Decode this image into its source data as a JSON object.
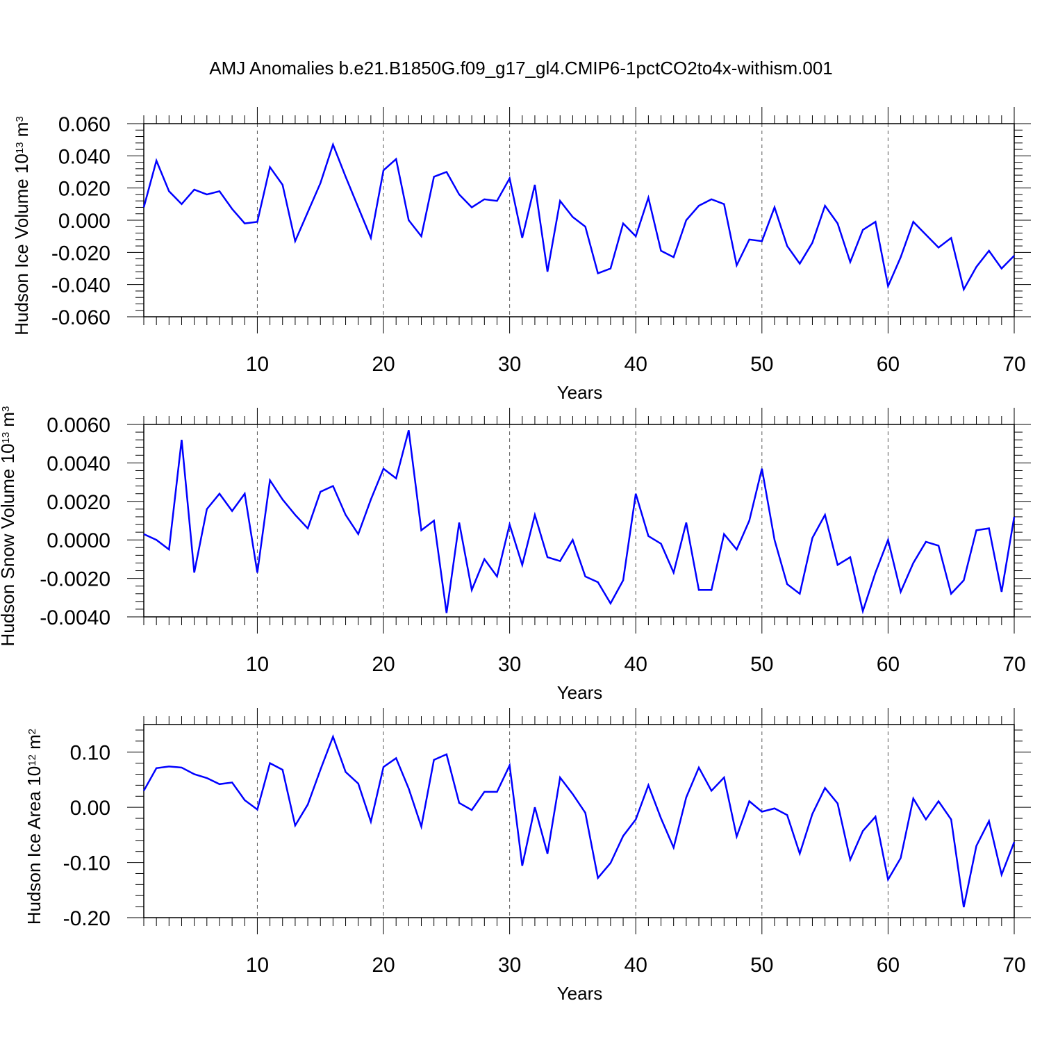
{
  "title": "AMJ Anomalies b.e21.B1850G.f09_g17_gl4.CMIP6-1pctCO2to4x-withism.001",
  "colors": {
    "line": "#0000ff",
    "axis": "#000000",
    "grid": "#555555"
  },
  "chart_data": [
    {
      "type": "line",
      "title": "",
      "xlabel": "Years",
      "ylabel": {
        "main": "Hudson Ice Volume 10",
        "exp": "13",
        "unit": " m",
        "unit_exp": "3"
      },
      "xlim": [
        1,
        70
      ],
      "ylim": [
        -0.06,
        0.06
      ],
      "x_major_ticks": [
        10,
        20,
        30,
        40,
        50,
        60,
        70
      ],
      "y_major_ticks": [
        -0.06,
        -0.04,
        -0.02,
        0,
        0.02,
        0.04,
        0.06
      ],
      "y_tick_labels": [
        "-0.060",
        "-0.040",
        "-0.020",
        "0.000",
        "0.020",
        "0.040",
        "0.060"
      ],
      "grid": "vertical dashed at major x ticks",
      "series": [
        {
          "name": "Hudson Ice Volume",
          "values": [
            0.008,
            0.037,
            0.018,
            0.01,
            0.019,
            0.016,
            0.018,
            0.007,
            -0.002,
            -0.001,
            0.033,
            0.022,
            -0.013,
            0.005,
            0.023,
            0.047,
            0.027,
            0.008,
            -0.011,
            0.031,
            0.038,
            0.0,
            -0.01,
            0.027,
            0.03,
            0.016,
            0.008,
            0.013,
            0.012,
            0.026,
            -0.011,
            0.022,
            -0.032,
            0.012,
            0.002,
            -0.004,
            -0.033,
            -0.03,
            -0.002,
            -0.01,
            0.014,
            -0.019,
            -0.023,
            0.0,
            0.009,
            0.013,
            0.01,
            -0.028,
            -0.012,
            -0.013,
            0.008,
            -0.016,
            -0.027,
            -0.014,
            0.009,
            -0.002,
            -0.026,
            -0.006,
            -0.001,
            -0.041,
            -0.023,
            -0.001,
            -0.009,
            -0.017,
            -0.011,
            -0.043,
            -0.029,
            -0.019,
            -0.03,
            -0.022
          ]
        }
      ]
    },
    {
      "type": "line",
      "title": "",
      "xlabel": "Years",
      "ylabel": {
        "main": "Hudson Snow Volume 10",
        "exp": "13",
        "unit": " m",
        "unit_exp": "3"
      },
      "xlim": [
        1,
        70
      ],
      "ylim": [
        -0.004,
        0.006
      ],
      "x_major_ticks": [
        10,
        20,
        30,
        40,
        50,
        60,
        70
      ],
      "y_major_ticks": [
        -0.004,
        -0.002,
        0,
        0.002,
        0.004,
        0.006
      ],
      "y_tick_labels": [
        "-0.0040",
        "-0.0020",
        "0.0000",
        "0.0020",
        "0.0040",
        "0.0060"
      ],
      "grid": "vertical dashed at major x ticks",
      "series": [
        {
          "name": "Hudson Snow Volume",
          "values": [
            0.0003,
            0.0,
            -0.0005,
            0.0052,
            -0.0017,
            0.0016,
            0.0024,
            0.0015,
            0.0024,
            -0.0017,
            0.0031,
            0.0021,
            0.0013,
            0.0006,
            0.0025,
            0.0028,
            0.0013,
            0.0003,
            0.0021,
            0.0037,
            0.0032,
            0.0057,
            0.0005,
            0.001,
            -0.0038,
            0.0009,
            -0.0026,
            -0.001,
            -0.0019,
            0.0008,
            -0.0013,
            0.0013,
            -0.0009,
            -0.0011,
            0.0,
            -0.0019,
            -0.0022,
            -0.0033,
            -0.0021,
            0.0024,
            0.0002,
            -0.0002,
            -0.0017,
            0.0009,
            -0.0026,
            -0.0026,
            0.0003,
            -0.0005,
            0.001,
            0.0037,
            0.0,
            -0.0023,
            -0.0028,
            0.0001,
            0.0013,
            -0.0013,
            -0.0009,
            -0.0037,
            -0.0017,
            0.0,
            -0.0027,
            -0.0012,
            -0.0001,
            -0.0003,
            -0.0028,
            -0.0021,
            0.0005,
            0.0006,
            -0.0027,
            0.0012
          ]
        }
      ]
    },
    {
      "type": "line",
      "title": "",
      "xlabel": "Years",
      "ylabel": {
        "main": "Hudson Ice Area 10",
        "exp": "12",
        "unit": " m",
        "unit_exp": "2"
      },
      "xlim": [
        1,
        70
      ],
      "ylim": [
        -0.2,
        0.15
      ],
      "x_major_ticks": [
        10,
        20,
        30,
        40,
        50,
        60,
        70
      ],
      "y_major_ticks": [
        -0.2,
        -0.1,
        0,
        0.1
      ],
      "y_tick_labels": [
        "-0.20",
        "-0.10",
        "0.00",
        "0.10"
      ],
      "grid": "vertical dashed at major x ticks",
      "series": [
        {
          "name": "Hudson Ice Area",
          "values": [
            0.03,
            0.071,
            0.074,
            0.072,
            0.06,
            0.053,
            0.042,
            0.045,
            0.013,
            -0.004,
            0.08,
            0.068,
            -0.033,
            0.005,
            0.068,
            0.128,
            0.064,
            0.043,
            -0.026,
            0.073,
            0.089,
            0.034,
            -0.035,
            0.086,
            0.096,
            0.008,
            -0.005,
            0.028,
            0.028,
            0.076,
            -0.106,
            0.0,
            -0.084,
            0.054,
            0.024,
            -0.01,
            -0.128,
            -0.101,
            -0.052,
            -0.022,
            0.04,
            -0.02,
            -0.073,
            0.018,
            0.072,
            0.03,
            0.054,
            -0.053,
            0.011,
            -0.008,
            -0.002,
            -0.014,
            -0.084,
            -0.012,
            0.035,
            0.007,
            -0.095,
            -0.043,
            -0.017,
            -0.131,
            -0.092,
            0.016,
            -0.022,
            0.011,
            -0.022,
            -0.181,
            -0.07,
            -0.025,
            -0.122,
            -0.063
          ]
        }
      ]
    }
  ]
}
